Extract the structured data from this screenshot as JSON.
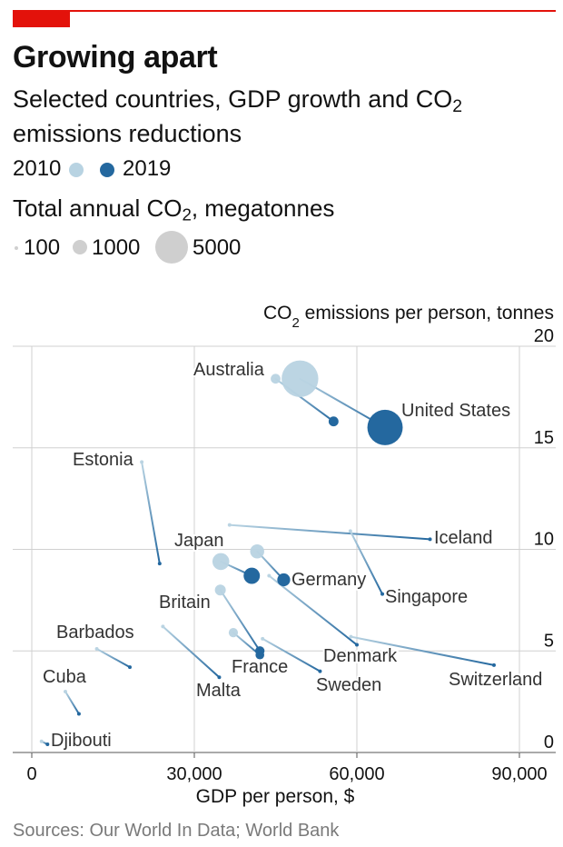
{
  "header": {
    "title": "Growing apart",
    "subtitle_prefix": "Selected countries, GDP growth and CO",
    "subtitle_sub": "2",
    "subtitle_suffix": "emissions reductions"
  },
  "legend": {
    "year_start": "2010",
    "year_end": "2019",
    "size_title_prefix": "Total annual CO",
    "size_title_sub": "2",
    "size_title_suffix": ", megatonnes",
    "sizes": [
      "100",
      "1000",
      "5000"
    ]
  },
  "colors": {
    "accent_red": "#e3120b",
    "start_color": "#b8d3e2",
    "end_color": "#24689f",
    "gridline": "#d0d0d0",
    "size_legend_grey": "#cfcfcf"
  },
  "chart_data": {
    "type": "scatter",
    "subtype": "connected dot (2010 to 2019)",
    "xlabel": "GDP per person, $",
    "ylabel_prefix": "CO",
    "ylabel_sub": "2",
    "ylabel_suffix": " emissions per person, tonnes",
    "xlim": [
      0,
      90000
    ],
    "ylim": [
      0,
      20
    ],
    "x_ticks": [
      0,
      30000,
      60000,
      90000
    ],
    "x_tick_labels": [
      "0",
      "30,000",
      "60,000",
      "90,000"
    ],
    "y_ticks": [
      0,
      5,
      10,
      15,
      20
    ],
    "y_tick_labels": [
      "0",
      "5",
      "10",
      "15",
      "20"
    ],
    "grid": "horizontal and vertical",
    "series": [
      {
        "country": "Australia",
        "gdp_2010": 45000,
        "co2_2010": 18.4,
        "gdp_2019": 55700,
        "co2_2019": 16.3,
        "mt_2010": 400,
        "mt_2019": 410
      },
      {
        "country": "United States",
        "gdp_2010": 49500,
        "co2_2010": 18.4,
        "gdp_2019": 65200,
        "co2_2019": 16.0,
        "mt_2010": 5650,
        "mt_2019": 5250
      },
      {
        "country": "Estonia",
        "gdp_2010": 20300,
        "co2_2010": 14.3,
        "gdp_2019": 23600,
        "co2_2019": 9.3,
        "mt_2010": 19,
        "mt_2019": 12
      },
      {
        "country": "Iceland",
        "gdp_2010": 36500,
        "co2_2010": 11.2,
        "gdp_2019": 73500,
        "co2_2019": 10.5,
        "mt_2010": 3,
        "mt_2019": 4
      },
      {
        "country": "Singapore",
        "gdp_2010": 58800,
        "co2_2010": 10.9,
        "gdp_2019": 64700,
        "co2_2019": 7.8,
        "mt_2010": 50,
        "mt_2019": 45
      },
      {
        "country": "Japan",
        "gdp_2010": 34900,
        "co2_2010": 9.4,
        "gdp_2019": 40600,
        "co2_2019": 8.7,
        "mt_2010": 1200,
        "mt_2019": 1110
      },
      {
        "country": "Germany",
        "gdp_2010": 41600,
        "co2_2010": 9.9,
        "gdp_2019": 46500,
        "co2_2019": 8.5,
        "mt_2010": 830,
        "mt_2019": 700
      },
      {
        "country": "Denmark",
        "gdp_2010": 43800,
        "co2_2010": 8.7,
        "gdp_2019": 60000,
        "co2_2019": 5.3,
        "mt_2010": 50,
        "mt_2019": 32
      },
      {
        "country": "Britain",
        "gdp_2010": 34800,
        "co2_2010": 8.0,
        "gdp_2019": 42100,
        "co2_2019": 5.0,
        "mt_2010": 500,
        "mt_2019": 365
      },
      {
        "country": "France",
        "gdp_2010": 37200,
        "co2_2010": 5.9,
        "gdp_2019": 42100,
        "co2_2019": 4.8,
        "mt_2010": 360,
        "mt_2019": 320
      },
      {
        "country": "Sweden",
        "gdp_2010": 42600,
        "co2_2010": 5.6,
        "gdp_2019": 53200,
        "co2_2019": 4.0,
        "mt_2010": 50,
        "mt_2019": 42
      },
      {
        "country": "Switzerland",
        "gdp_2010": 58900,
        "co2_2010": 5.7,
        "gdp_2019": 85300,
        "co2_2019": 4.3,
        "mt_2010": 44,
        "mt_2019": 38
      },
      {
        "country": "Barbados",
        "gdp_2010": 12000,
        "co2_2010": 5.1,
        "gdp_2019": 18100,
        "co2_2019": 4.2,
        "mt_2010": 1.5,
        "mt_2019": 1.2
      },
      {
        "country": "Malta",
        "gdp_2010": 24200,
        "co2_2010": 6.2,
        "gdp_2019": 34600,
        "co2_2019": 3.7,
        "mt_2010": 2.6,
        "mt_2019": 1.6
      },
      {
        "country": "Cuba",
        "gdp_2010": 6200,
        "co2_2010": 3.0,
        "gdp_2019": 8700,
        "co2_2019": 1.9,
        "mt_2010": 38,
        "mt_2019": 22
      },
      {
        "country": "Djibouti",
        "gdp_2010": 1800,
        "co2_2010": 0.55,
        "gdp_2019": 2900,
        "co2_2019": 0.4,
        "mt_2010": 0.5,
        "mt_2019": 0.4
      }
    ]
  },
  "source": "Sources: Our World In Data; World Bank"
}
